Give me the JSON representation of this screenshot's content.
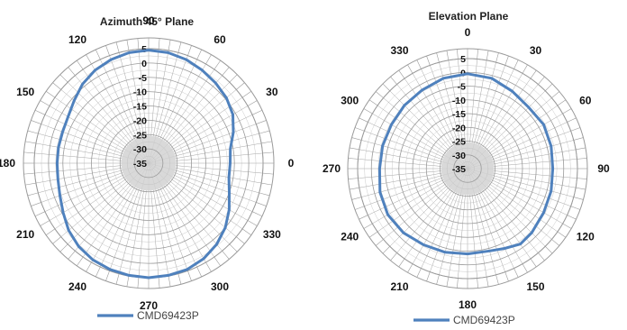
{
  "colors": {
    "series": "#4f81bd",
    "grid": "#9a9a9a",
    "inner_fill": "#d9d9d9",
    "rim_fill": "#ffffff"
  },
  "chart_data": [
    {
      "type": "polar-line",
      "title": "Azimuth 45° Plane",
      "direction": "counterclockwise",
      "zero_at": "right",
      "r_range": [
        -35,
        5
      ],
      "r_ticks": [
        "5",
        "0",
        "-5",
        "-10",
        "-15",
        "-20",
        "-25",
        "-30",
        "-35"
      ],
      "angle_ticks": [
        {
          "label": "90",
          "angle": 90
        },
        {
          "label": "60",
          "angle": 60
        },
        {
          "label": "30",
          "angle": 30
        },
        {
          "label": "0",
          "angle": 0
        },
        {
          "label": "330",
          "angle": 330
        },
        {
          "label": "300",
          "angle": 300
        },
        {
          "label": "270",
          "angle": 270
        },
        {
          "label": "240",
          "angle": 240
        },
        {
          "label": "210",
          "angle": 210
        },
        {
          "label": "180",
          "angle": 180
        },
        {
          "label": "150",
          "angle": 150
        },
        {
          "label": "120",
          "angle": 120
        }
      ],
      "legend_position": "bottom",
      "series": [
        {
          "name": "CMD69423P",
          "points": [
            [
              0,
              -6.5
            ],
            [
              10,
              -6
            ],
            [
              20,
              -3.5
            ],
            [
              30,
              -1
            ],
            [
              40,
              0.5
            ],
            [
              50,
              1.5
            ],
            [
              60,
              2.5
            ],
            [
              70,
              3.5
            ],
            [
              80,
              4.2
            ],
            [
              90,
              4.5
            ],
            [
              100,
              4.2
            ],
            [
              110,
              3.5
            ],
            [
              120,
              2.5
            ],
            [
              130,
              1
            ],
            [
              140,
              -1
            ],
            [
              150,
              -2.5
            ],
            [
              160,
              -3
            ],
            [
              170,
              -3
            ],
            [
              180,
              -3
            ],
            [
              190,
              -2.8
            ],
            [
              200,
              -2
            ],
            [
              210,
              -0.5
            ],
            [
              220,
              1.5
            ],
            [
              230,
              3
            ],
            [
              240,
              4
            ],
            [
              250,
              4.5
            ],
            [
              260,
              4.8
            ],
            [
              270,
              5
            ],
            [
              280,
              4.8
            ],
            [
              290,
              4.5
            ],
            [
              300,
              3.5
            ],
            [
              310,
              2
            ],
            [
              320,
              0
            ],
            [
              330,
              -2.5
            ],
            [
              340,
              -5
            ],
            [
              350,
              -6.5
            ]
          ]
        }
      ]
    },
    {
      "type": "polar-line",
      "title": "Elevation Plane",
      "direction": "clockwise",
      "zero_at": "top",
      "r_range": [
        -35,
        5
      ],
      "r_ticks": [
        "5",
        "0",
        "-5",
        "-10",
        "-15",
        "-20",
        "-25",
        "-30",
        "-35"
      ],
      "angle_ticks": [
        {
          "label": "0",
          "angle": 0
        },
        {
          "label": "30",
          "angle": 30
        },
        {
          "label": "60",
          "angle": 60
        },
        {
          "label": "90",
          "angle": 90
        },
        {
          "label": "120",
          "angle": 120
        },
        {
          "label": "150",
          "angle": 150
        },
        {
          "label": "180",
          "angle": 180
        },
        {
          "label": "210",
          "angle": 210
        },
        {
          "label": "240",
          "angle": 240
        },
        {
          "label": "270",
          "angle": 270
        },
        {
          "label": "300",
          "angle": 300
        },
        {
          "label": "330",
          "angle": 330
        }
      ],
      "legend_position": "bottom",
      "series": [
        {
          "name": "CMD69423P",
          "points": [
            [
              0,
              -0.5
            ],
            [
              15,
              -1
            ],
            [
              30,
              -2.5
            ],
            [
              45,
              -3.5
            ],
            [
              60,
              -3
            ],
            [
              75,
              -3.5
            ],
            [
              90,
              -4
            ],
            [
              105,
              -3.5
            ],
            [
              120,
              -3
            ],
            [
              135,
              -2
            ],
            [
              145,
              -1.5
            ],
            [
              155,
              -3
            ],
            [
              165,
              -4
            ],
            [
              180,
              -4
            ],
            [
              195,
              -3.5
            ],
            [
              210,
              -3
            ],
            [
              225,
              -2
            ],
            [
              240,
              -1.5
            ],
            [
              255,
              -2
            ],
            [
              270,
              -3
            ],
            [
              285,
              -3
            ],
            [
              300,
              -3
            ],
            [
              315,
              -2.5
            ],
            [
              330,
              -2
            ],
            [
              345,
              -1
            ]
          ]
        }
      ]
    }
  ]
}
